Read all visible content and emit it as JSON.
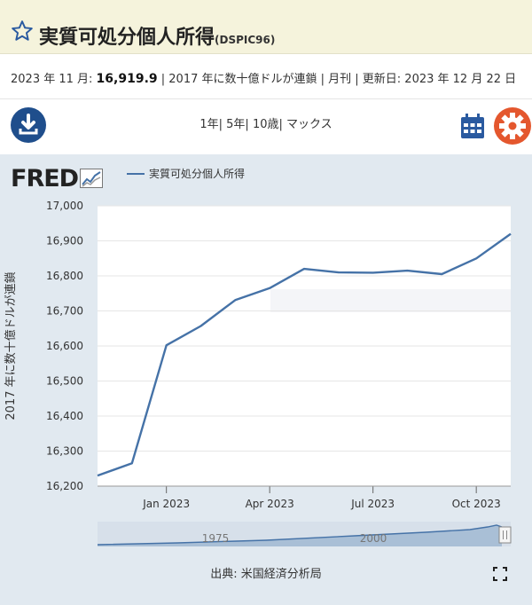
{
  "header": {
    "title": "実質可処分個人所得",
    "code": "(DSPIC96)"
  },
  "info": {
    "period": "2023 年 11 月: ",
    "value": "16,919.9",
    "rest": " | 2017 年に数十億ドルが連鎖 | 月刊 | 更新日: 2023 年 12 月 22 日"
  },
  "toolbar": {
    "ranges": [
      "1年",
      "5年",
      "10歳",
      "マックス"
    ]
  },
  "icons": {
    "download": "download-icon",
    "calendar": "calendar-icon",
    "settings": "gear-icon",
    "favorite": "star-icon",
    "fullscreen": "fullscreen-icon"
  },
  "colors": {
    "line": "#4572a7",
    "accent_orange": "#e4572e",
    "accent_blue": "#1f4e8c"
  },
  "chart_data": {
    "type": "line",
    "title": "",
    "brand": "FRED",
    "legend": [
      "実質可処分個人所得"
    ],
    "legend_position": "top-left",
    "ylabel": "2017 年に数十億ドルが連鎖",
    "ylim": [
      16200,
      17000
    ],
    "yticks": [
      "16,200",
      "16,300",
      "16,400",
      "16,500",
      "16,600",
      "16,700",
      "16,800",
      "16,900",
      "17,000"
    ],
    "xticks": [
      "Jan 2023",
      "Apr 2023",
      "Jul 2023",
      "Oct 2023"
    ],
    "grid": true,
    "series": [
      {
        "name": "実質可処分個人所得",
        "x": [
          "2022-11",
          "2022-12",
          "2023-01",
          "2023-02",
          "2023-03",
          "2023-04",
          "2023-05",
          "2023-06",
          "2023-07",
          "2023-08",
          "2023-09",
          "2023-10",
          "2023-11"
        ],
        "values": [
          16230,
          16265,
          16602,
          16657,
          16731,
          16765,
          16820,
          16810,
          16809,
          16815,
          16805,
          16850,
          16919.9
        ]
      }
    ],
    "navigator_labels": [
      "1975",
      "2000"
    ],
    "source": "出典: 米国経済分析局"
  }
}
